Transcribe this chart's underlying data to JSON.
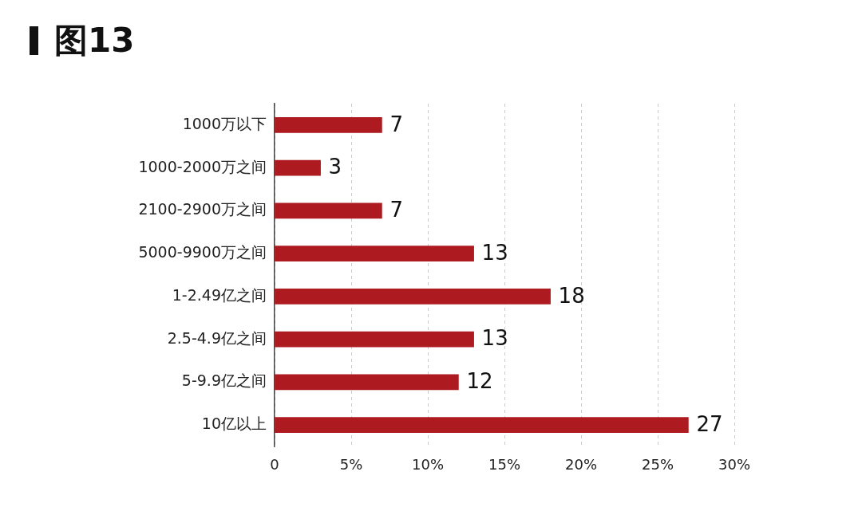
{
  "chart_data": {
    "type": "bar",
    "orientation": "horizontal",
    "title": "图13",
    "categories": [
      "1000万以下",
      "1000-2000万之间",
      "2100-2900万之间",
      "5000-9900万之间",
      "1-2.49亿之间",
      "2.5-4.9亿之间",
      "5-9.9亿之间",
      "10亿以上"
    ],
    "values": [
      7,
      3,
      7,
      13,
      18,
      13,
      12,
      27
    ],
    "color": "#ad1a1f",
    "xlim": [
      0,
      30
    ],
    "xticks": [
      0,
      {
        "value": 5,
        "label": "5%"
      },
      {
        "value": 10,
        "label": "10%"
      },
      {
        "value": 15,
        "label": "15%"
      },
      {
        "value": 20,
        "label": "20%"
      },
      {
        "value": 25,
        "label": "25%"
      },
      {
        "value": 30,
        "label": "30%"
      }
    ],
    "grid": "x",
    "data_labels": true
  }
}
